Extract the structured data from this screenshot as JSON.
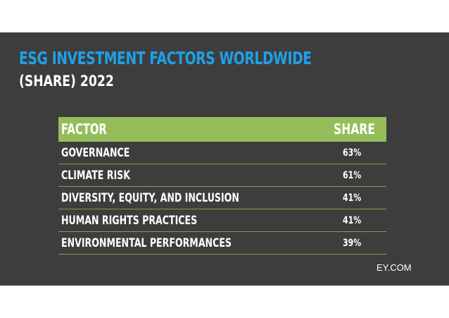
{
  "colors": {
    "slide_background": "#3d3d3d",
    "title": "#1fa0e8",
    "header_background": "#95bd5a",
    "text": "#ffffff",
    "row_divider": "#8a9a5a"
  },
  "title": "ESG INVESTMENT FACTORS WORLDWIDE",
  "subtitle": "(SHARE) 2022",
  "source": "EY.COM",
  "chart_data": {
    "type": "table",
    "title": "ESG INVESTMENT FACTORS WORLDWIDE",
    "subtitle": "(SHARE) 2022",
    "columns": [
      "FACTOR",
      "SHARE"
    ],
    "rows": [
      {
        "factor": "GOVERNANCE",
        "share": "63%",
        "value": 63
      },
      {
        "factor": "CLIMATE RISK",
        "share": "61%",
        "value": 61
      },
      {
        "factor": "DIVERSITY, EQUITY, AND INCLUSION",
        "share": "41%",
        "value": 41
      },
      {
        "factor": "HUMAN RIGHTS PRACTICES",
        "share": "41%",
        "value": 41
      },
      {
        "factor": "ENVIRONMENTAL PERFORMANCES",
        "share": "39%",
        "value": 39
      }
    ]
  }
}
